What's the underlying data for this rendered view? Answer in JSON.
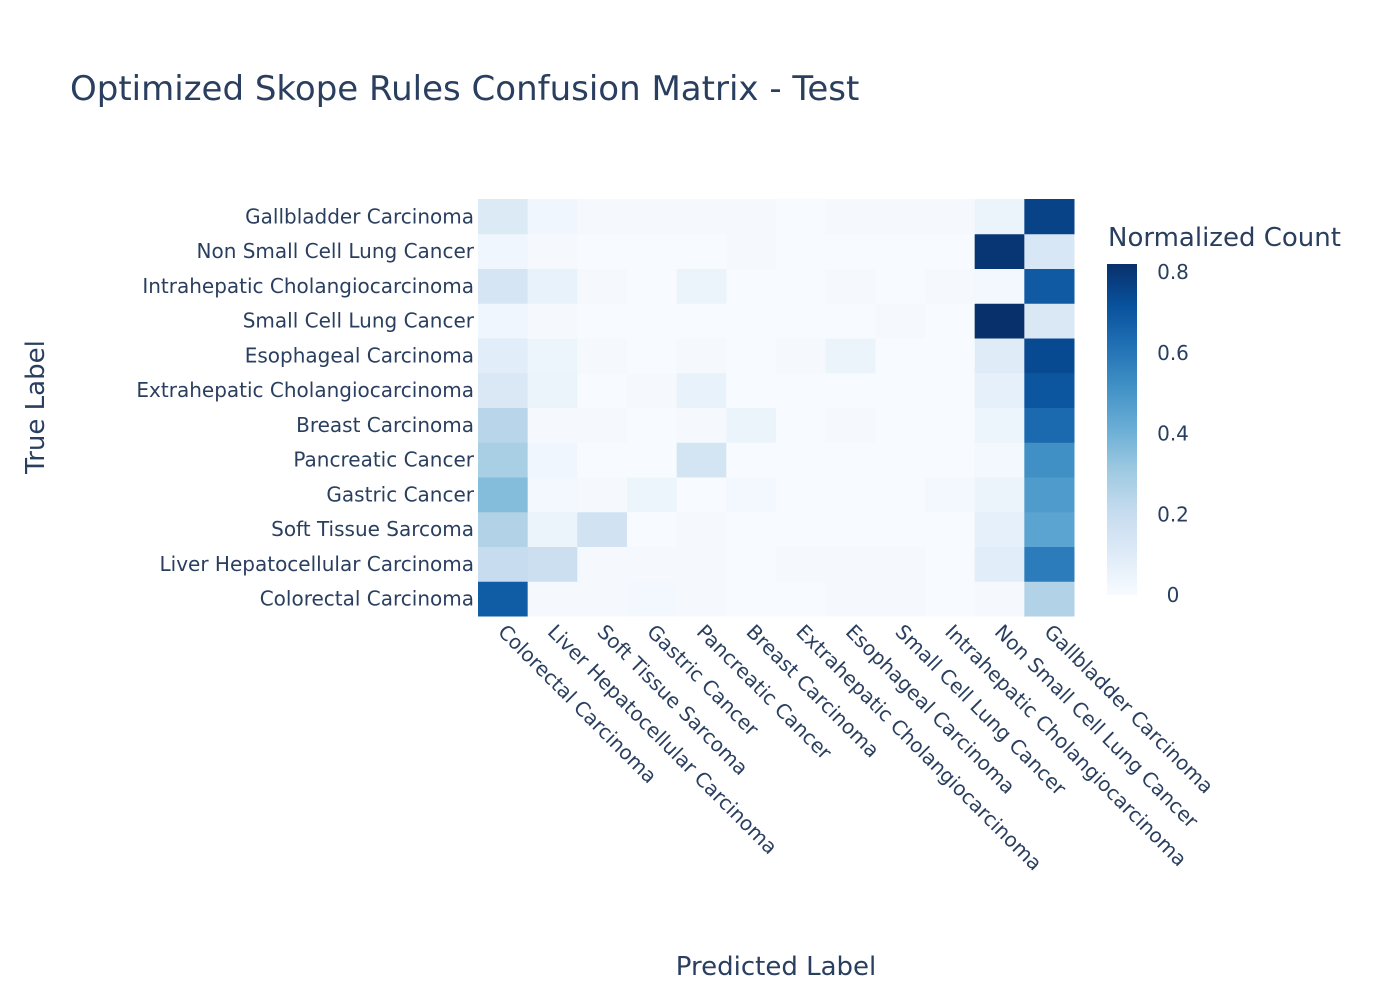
{
  "chart_data": {
    "type": "heatmap",
    "title": "Optimized Skope Rules Confusion Matrix - Test",
    "xlabel": "Predicted Label",
    "ylabel": "True Label",
    "x_categories": [
      "Colorectal Carcinoma",
      "Liver Hepatocellular Carcinoma",
      "Soft Tissue Sarcoma",
      "Gastric Cancer",
      "Pancreatic Cancer",
      "Breast Carcinoma",
      "Extrahepatic Cholangiocarcinoma",
      "Esophageal Carcinoma",
      "Small Cell Lung Cancer",
      "Intrahepatic Cholangiocarcinoma",
      "Non Small Cell Lung Cancer",
      "Gallbladder Carcinoma"
    ],
    "y_categories": [
      "Colorectal Carcinoma",
      "Liver Hepatocellular Carcinoma",
      "Soft Tissue Sarcoma",
      "Gastric Cancer",
      "Pancreatic Cancer",
      "Breast Carcinoma",
      "Extrahepatic Cholangiocarcinoma",
      "Esophageal Carcinoma",
      "Small Cell Lung Cancer",
      "Intrahepatic Cholangiocarcinoma",
      "Non Small Cell Lung Cancer",
      "Gallbladder Carcinoma"
    ],
    "z": [
      [
        0.68,
        0.01,
        0.01,
        0.02,
        0.01,
        0.0,
        0.0,
        0.01,
        0.01,
        0.0,
        0.01,
        0.26
      ],
      [
        0.2,
        0.18,
        0.01,
        0.01,
        0.01,
        0.0,
        0.01,
        0.01,
        0.01,
        0.0,
        0.09,
        0.58
      ],
      [
        0.26,
        0.05,
        0.16,
        0.0,
        0.01,
        0.0,
        0.0,
        0.0,
        0.0,
        0.0,
        0.07,
        0.45
      ],
      [
        0.36,
        0.02,
        0.01,
        0.04,
        0.0,
        0.02,
        0.0,
        0.0,
        0.0,
        0.02,
        0.05,
        0.48
      ],
      [
        0.28,
        0.03,
        0.0,
        0.0,
        0.15,
        0.0,
        0.0,
        0.0,
        0.0,
        0.0,
        0.02,
        0.52
      ],
      [
        0.24,
        0.01,
        0.01,
        0.0,
        0.01,
        0.05,
        0.0,
        0.01,
        0.0,
        0.0,
        0.04,
        0.64
      ],
      [
        0.12,
        0.05,
        0.0,
        0.01,
        0.06,
        0.0,
        0.0,
        0.0,
        0.0,
        0.0,
        0.07,
        0.7
      ],
      [
        0.09,
        0.04,
        0.01,
        0.0,
        0.01,
        0.0,
        0.01,
        0.05,
        0.0,
        0.0,
        0.1,
        0.74
      ],
      [
        0.03,
        0.01,
        0.0,
        0.0,
        0.0,
        0.0,
        0.0,
        0.0,
        0.01,
        0.0,
        0.82,
        0.12
      ],
      [
        0.14,
        0.06,
        0.01,
        0.0,
        0.05,
        0.0,
        0.0,
        0.01,
        0.0,
        0.01,
        0.02,
        0.69
      ],
      [
        0.03,
        0.01,
        0.0,
        0.0,
        0.0,
        0.01,
        0.0,
        0.0,
        0.0,
        0.0,
        0.8,
        0.13
      ],
      [
        0.11,
        0.03,
        0.01,
        0.01,
        0.01,
        0.01,
        0.0,
        0.01,
        0.01,
        0.01,
        0.05,
        0.76
      ]
    ],
    "zlim": [
      0,
      0.82
    ],
    "colorscale": [
      [
        0.0,
        "#f7fbff"
      ],
      [
        0.125,
        "#deebf7"
      ],
      [
        0.25,
        "#c6dbef"
      ],
      [
        0.375,
        "#9ecae1"
      ],
      [
        0.5,
        "#6baed6"
      ],
      [
        0.625,
        "#4292c6"
      ],
      [
        0.75,
        "#2171b5"
      ],
      [
        0.875,
        "#08519c"
      ],
      [
        1.0,
        "#08306b"
      ]
    ],
    "colorbar": {
      "title": "Normalized Count",
      "ticks": [
        0,
        0.2,
        0.4,
        0.6,
        0.8
      ],
      "tick_labels": [
        "0",
        "0.2",
        "0.4",
        "0.6",
        "0.8"
      ]
    },
    "grid": false
  },
  "colors": {
    "text": "#2a3f5f",
    "background": "#ffffff"
  }
}
